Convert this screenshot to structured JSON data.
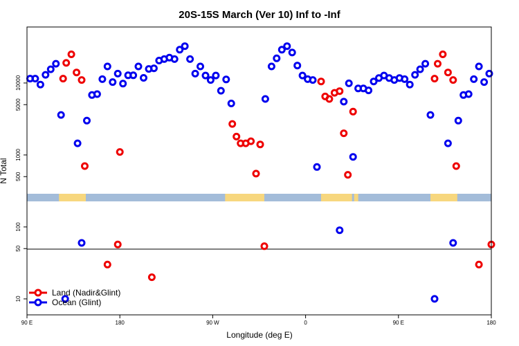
{
  "chart_data": {
    "type": "scatter",
    "title": "20S-15S March (Ver 10)   Inf to -Inf",
    "xlabel": "Longitude (deg E)",
    "ylabel": "N Total",
    "x_ticks": [
      {
        "value": 0,
        "label": "90 E"
      },
      {
        "value": 90,
        "label": "180"
      },
      {
        "value": 180,
        "label": "90 W"
      },
      {
        "value": 270,
        "label": "0"
      },
      {
        "value": 360,
        "label": "90 E"
      },
      {
        "value": 450,
        "label": "180"
      }
    ],
    "xlim": [
      0,
      450
    ],
    "y_scale": "log",
    "ylim": [
      6,
      60000
    ],
    "y_ticks": [
      10,
      50,
      100,
      500,
      1000,
      5000,
      10000
    ],
    "legend": {
      "position": "bottom-left",
      "entries": [
        {
          "label": "Land (Nadir&Glint)",
          "color": "#ee0000"
        },
        {
          "label": "Ocean (Glint)",
          "color": "#0000ee"
        }
      ]
    },
    "land_mask_band": {
      "base_color": "#a3bcd9",
      "land_color": "#f7d77e",
      "land_ranges": [
        [
          31,
          57
        ],
        [
          192,
          230
        ],
        [
          285,
          315
        ],
        [
          317,
          321
        ],
        [
          391,
          417
        ]
      ]
    },
    "series": [
      {
        "name": "Land (Nadir&Glint)",
        "color": "#ee0000",
        "points": [
          [
            35,
            11500
          ],
          [
            38,
            19000
          ],
          [
            43,
            25000
          ],
          [
            48,
            14000
          ],
          [
            53,
            11000
          ],
          [
            56,
            700
          ],
          [
            90,
            1100
          ],
          [
            88,
            57
          ],
          [
            78,
            30
          ],
          [
            121,
            20
          ],
          [
            199,
            2700
          ],
          [
            203,
            1800
          ],
          [
            207,
            1450
          ],
          [
            212,
            1450
          ],
          [
            217,
            1550
          ],
          [
            222,
            550
          ],
          [
            226,
            1400
          ],
          [
            230,
            54
          ],
          [
            285,
            10500
          ],
          [
            289,
            6500
          ],
          [
            293,
            6000
          ],
          [
            298,
            7300
          ],
          [
            303,
            7700
          ],
          [
            307,
            2000
          ],
          [
            311,
            530
          ],
          [
            316,
            4000
          ],
          [
            395,
            11500
          ],
          [
            398,
            18500
          ],
          [
            403,
            25000
          ],
          [
            408,
            14000
          ],
          [
            413,
            11000
          ],
          [
            416,
            700
          ],
          [
            450,
            57
          ],
          [
            438,
            30
          ]
        ]
      },
      {
        "name": "Ocean (Glint)",
        "color": "#0000ee",
        "points": [
          [
            3,
            11500
          ],
          [
            8,
            11500
          ],
          [
            13,
            9500
          ],
          [
            18,
            13000
          ],
          [
            23,
            15500
          ],
          [
            28,
            18500
          ],
          [
            33,
            3600
          ],
          [
            37,
            10
          ],
          [
            49,
            1450
          ],
          [
            53,
            60
          ],
          [
            58,
            3000
          ],
          [
            63,
            6800
          ],
          [
            68,
            7000
          ],
          [
            73,
            11300
          ],
          [
            78,
            17000
          ],
          [
            83,
            10300
          ],
          [
            88,
            13500
          ],
          [
            93,
            9800
          ],
          [
            98,
            12800
          ],
          [
            103,
            12800
          ],
          [
            108,
            17000
          ],
          [
            113,
            11800
          ],
          [
            118,
            15700
          ],
          [
            123,
            16000
          ],
          [
            128,
            20500
          ],
          [
            133,
            21500
          ],
          [
            138,
            22500
          ],
          [
            143,
            21500
          ],
          [
            148,
            29000
          ],
          [
            153,
            32500
          ],
          [
            158,
            21500
          ],
          [
            163,
            13500
          ],
          [
            168,
            17000
          ],
          [
            173,
            12700
          ],
          [
            178,
            11000
          ],
          [
            183,
            12700
          ],
          [
            188,
            7800
          ],
          [
            193,
            11200
          ],
          [
            198,
            5200
          ],
          [
            231,
            6000
          ],
          [
            237,
            17000
          ],
          [
            242,
            22000
          ],
          [
            247,
            29000
          ],
          [
            252,
            32500
          ],
          [
            257,
            26500
          ],
          [
            262,
            17500
          ],
          [
            267,
            12700
          ],
          [
            272,
            11300
          ],
          [
            277,
            11000
          ],
          [
            281,
            680
          ],
          [
            303,
            90
          ],
          [
            307,
            5500
          ],
          [
            312,
            9900
          ],
          [
            316,
            940
          ],
          [
            321,
            8400
          ],
          [
            326,
            8400
          ],
          [
            331,
            7900
          ],
          [
            336,
            10500
          ],
          [
            341,
            11700
          ],
          [
            346,
            12700
          ],
          [
            351,
            11700
          ],
          [
            356,
            11000
          ],
          [
            361,
            11700
          ],
          [
            366,
            11300
          ],
          [
            371,
            9500
          ],
          [
            376,
            13000
          ],
          [
            381,
            15500
          ],
          [
            386,
            18500
          ],
          [
            391,
            3600
          ],
          [
            395,
            10
          ],
          [
            408,
            1450
          ],
          [
            413,
            60
          ],
          [
            418,
            3000
          ],
          [
            423,
            6800
          ],
          [
            428,
            7000
          ],
          [
            433,
            11300
          ],
          [
            438,
            17000
          ],
          [
            443,
            10300
          ],
          [
            448,
            13500
          ]
        ]
      }
    ]
  }
}
